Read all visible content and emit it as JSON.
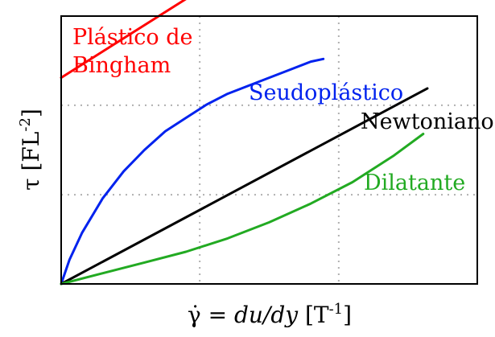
{
  "chart_data": {
    "type": "line",
    "xlabel_prefix": "γ̇ = ",
    "xlabel_italic": "du/dy",
    "xlabel_unit_open": " [T",
    "xlabel_unit_sup": "-1",
    "xlabel_unit_close": "]",
    "ylabel_main": "τ [FL",
    "ylabel_sup": "-2",
    "ylabel_close": "]",
    "xlim": [
      0,
      1
    ],
    "ylim": [
      0,
      1
    ],
    "grid": true,
    "gridlines_x": [
      0.333,
      0.667
    ],
    "gridlines_y": [
      0.333,
      0.667
    ],
    "series": [
      {
        "name": "Plástico de Bingham",
        "label_line1": "Plástico de",
        "label_line2": "Bingham",
        "color": "#ff0000",
        "x": [
          0,
          0.51
        ],
        "y": [
          0.77,
          1.27
        ]
      },
      {
        "name": "Seudoplástico",
        "color": "#0022ee",
        "x": [
          0,
          0.02,
          0.05,
          0.1,
          0.15,
          0.2,
          0.25,
          0.3,
          0.35,
          0.4,
          0.45,
          0.5,
          0.55,
          0.6,
          0.63
        ],
        "y": [
          0,
          0.09,
          0.19,
          0.32,
          0.42,
          0.5,
          0.57,
          0.62,
          0.67,
          0.71,
          0.74,
          0.77,
          0.8,
          0.83,
          0.84
        ]
      },
      {
        "name": "Newtoniano",
        "color": "#000000",
        "x": [
          0,
          0.88
        ],
        "y": [
          0,
          0.73
        ]
      },
      {
        "name": "Dilatante",
        "color": "#22aa22",
        "x": [
          0,
          0.1,
          0.2,
          0.3,
          0.4,
          0.5,
          0.6,
          0.7,
          0.8,
          0.87
        ],
        "y": [
          0,
          0.04,
          0.08,
          0.12,
          0.17,
          0.23,
          0.3,
          0.38,
          0.48,
          0.56
        ]
      }
    ]
  }
}
